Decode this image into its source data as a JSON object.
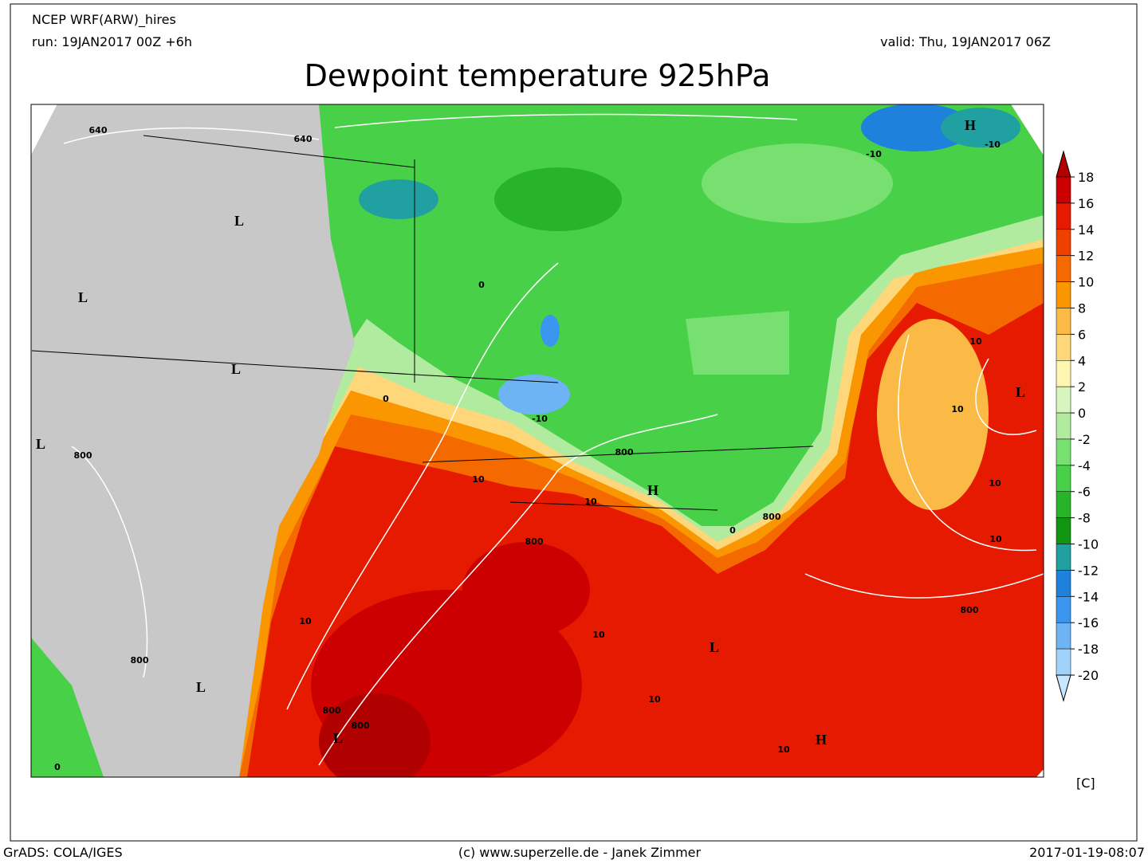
{
  "header": {
    "model": "NCEP WRF(ARW)_hires",
    "run": "run: 19JAN2017 00Z +6h",
    "valid": "valid: Thu, 19JAN2017 06Z",
    "title": "Dewpoint temperature 925hPa"
  },
  "map_labels": [
    "L",
    "L",
    "L",
    "L",
    "L",
    "L",
    "L",
    "L",
    "H",
    "H",
    "H",
    "640",
    "640",
    "800",
    "800",
    "800",
    "800",
    "800",
    "800",
    "800",
    "800",
    "10",
    "10",
    "10",
    "10",
    "10",
    "10",
    "10",
    "10",
    "10",
    "10",
    "0",
    "0",
    "0",
    "0",
    "-10",
    "-10",
    "-10"
  ],
  "colorbar": {
    "levels": [
      18,
      16,
      14,
      12,
      10,
      8,
      6,
      4,
      2,
      0,
      -2,
      -4,
      -6,
      -8,
      -10,
      -12,
      -14,
      -16,
      -18,
      -20
    ],
    "colors": [
      "#b00000",
      "#cc0000",
      "#e61a00",
      "#f04000",
      "#f56a00",
      "#fa9600",
      "#fbb946",
      "#fdd77a",
      "#fdf5b0",
      "#d8f5c0",
      "#b0eba0",
      "#78e070",
      "#48d048",
      "#28b428",
      "#109610",
      "#20a0a0",
      "#1e82dc",
      "#3c96f0",
      "#6eb4f5",
      "#a0d2fa",
      "#c8e6ff"
    ],
    "unit": "[C]"
  },
  "footer": {
    "left": "GrADS: COLA/IGES",
    "center": "(c) www.superzelle.de - Janek Zimmer",
    "right": "2017-01-19-08:07"
  }
}
